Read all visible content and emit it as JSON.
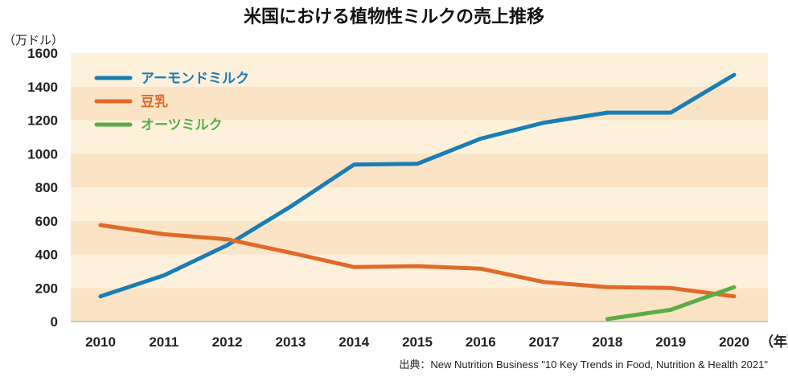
{
  "chart_data": {
    "type": "line",
    "title": "米国における植物性ミルクの売上推移",
    "ylabel": "（万ドル）",
    "xlabel": "（年）",
    "x": [
      2010,
      2011,
      2012,
      2013,
      2014,
      2015,
      2016,
      2017,
      2018,
      2019,
      2020
    ],
    "x_tick_labels": [
      "2010",
      "2011",
      "2012",
      "2013",
      "2014",
      "2015",
      "2016",
      "2017",
      "2018",
      "2019",
      "2020"
    ],
    "ylim": [
      0,
      1600
    ],
    "y_ticks": [
      0,
      200,
      400,
      600,
      800,
      1000,
      1200,
      1400,
      1600
    ],
    "y_tick_labels": [
      "0",
      "200",
      "400",
      "600",
      "800",
      "1000",
      "1200",
      "1400",
      "1600"
    ],
    "grid": "alternating horizontal bands",
    "legend_position": "top-left",
    "series": [
      {
        "name": "アーモンドミルク",
        "color": "#1a7db5",
        "values": [
          150,
          275,
          455,
          685,
          935,
          940,
          1090,
          1185,
          1245,
          1245,
          1470
        ]
      },
      {
        "name": "豆乳",
        "color": "#e06a2a",
        "values": [
          575,
          520,
          490,
          410,
          325,
          330,
          315,
          235,
          205,
          200,
          150
        ]
      },
      {
        "name": "オーツミルク",
        "color": "#5aad45",
        "values": [
          null,
          null,
          null,
          null,
          null,
          null,
          null,
          null,
          15,
          70,
          205
        ]
      }
    ],
    "band_colors": [
      "#fbe3c6",
      "#fdf1dc"
    ],
    "source": "出典：New Nutrition Business \"10 Key Trends in Food, Nutrition & Health 2021\""
  }
}
